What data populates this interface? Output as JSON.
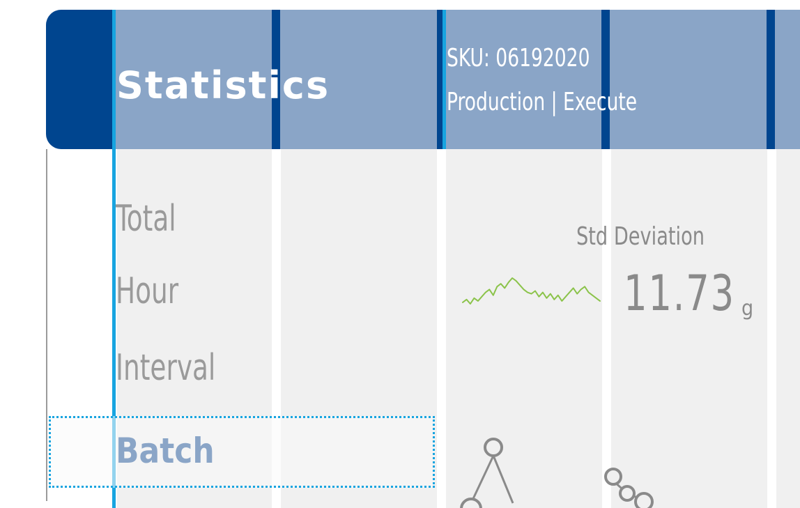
{
  "header": {
    "title": "Statistics",
    "sku": "SKU: 06192020",
    "mode": "Production | Execute"
  },
  "nav": {
    "items": [
      {
        "label": "Total",
        "selected": false
      },
      {
        "label": "Hour",
        "selected": false
      },
      {
        "label": "Interval",
        "selected": false
      },
      {
        "label": "Batch",
        "selected": true
      }
    ]
  },
  "stat": {
    "label": "Std Deviation",
    "value": "11.73",
    "unit": "g",
    "trend": [
      5,
      7,
      4,
      8,
      6,
      9,
      12,
      14,
      10,
      16,
      18,
      15,
      19,
      22,
      20,
      17,
      14,
      12,
      11,
      13,
      9,
      12,
      8,
      11,
      7,
      10,
      6,
      9,
      12,
      15,
      11,
      14,
      16,
      12,
      10,
      8,
      6
    ]
  },
  "icons": {
    "sparkline": "sparkline-icon",
    "molecule": "molecule-icon"
  },
  "colors": {
    "header_blue": "#8aa5c7",
    "header_dark": "#00458f",
    "accent_cyan": "#17a4e0",
    "sparkline_green": "#8bc34a",
    "text_gray": "#8a8a8a"
  }
}
